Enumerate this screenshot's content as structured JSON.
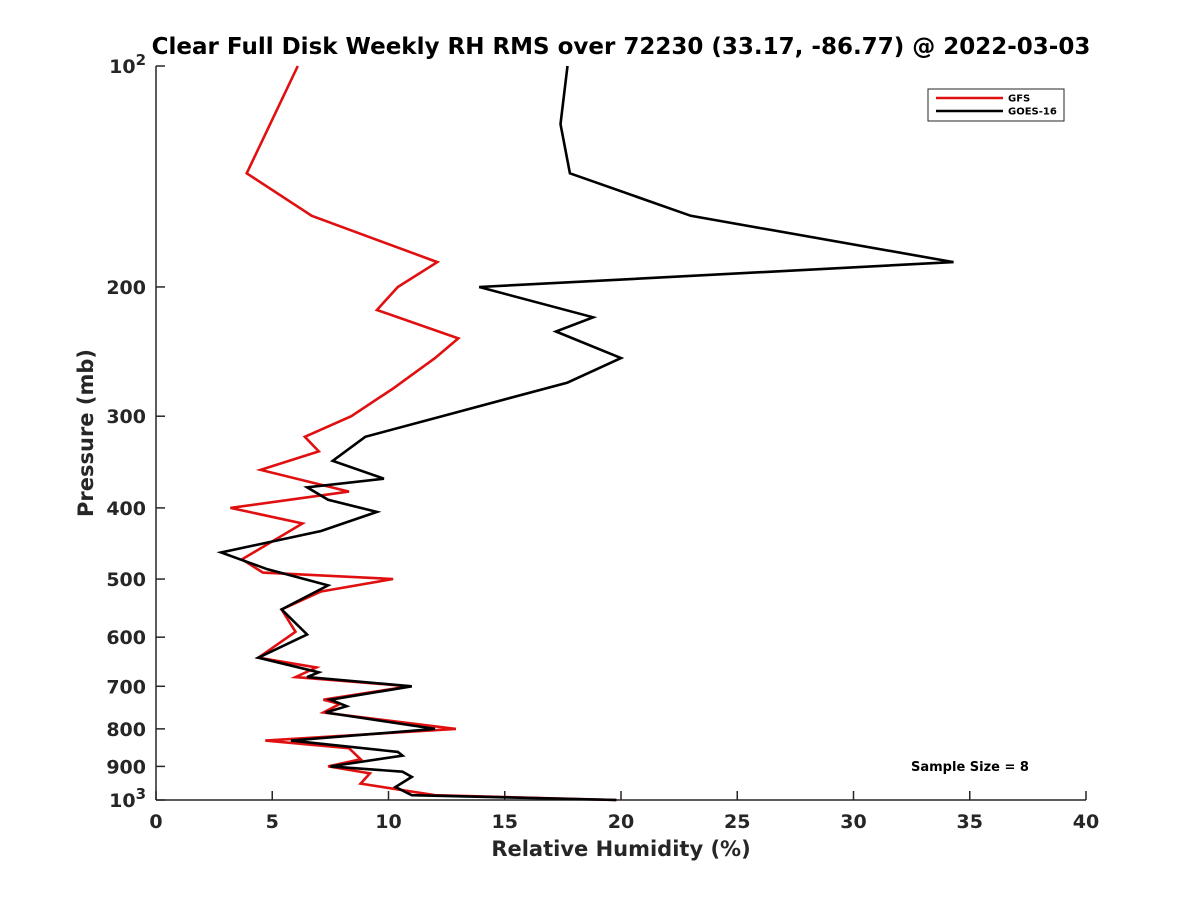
{
  "chart_data": {
    "type": "line",
    "title": "Clear Full Disk Weekly RH RMS over 72230 (33.17, -86.77) @ 2022-03-03",
    "xlabel": "Relative Humidity (%)",
    "ylabel": "Pressure (mb)",
    "xlim": [
      0,
      40
    ],
    "ylim": [
      100,
      1000
    ],
    "yscale": "log",
    "y_reversed": true,
    "x_ticks": [
      0,
      5,
      10,
      15,
      20,
      25,
      30,
      35,
      40
    ],
    "y_ticks": [
      {
        "value": 100,
        "base": "10",
        "exp": "2"
      },
      {
        "value": 200,
        "label": "200"
      },
      {
        "value": 300,
        "label": "300"
      },
      {
        "value": 400,
        "label": "400"
      },
      {
        "value": 500,
        "label": "500"
      },
      {
        "value": 600,
        "label": "600"
      },
      {
        "value": 700,
        "label": "700"
      },
      {
        "value": 800,
        "label": "800"
      },
      {
        "value": 900,
        "label": "900"
      },
      {
        "value": 1000,
        "base": "10",
        "exp": "3"
      }
    ],
    "legend_position": "top-right",
    "annotation": "Sample Size = 8",
    "series": [
      {
        "name": "GFS",
        "color": "#e01010",
        "points": [
          [
            6.1,
            100
          ],
          [
            3.9,
            140
          ],
          [
            6.7,
            160
          ],
          [
            12.1,
            185
          ],
          [
            10.4,
            200
          ],
          [
            9.5,
            215
          ],
          [
            13.0,
            235
          ],
          [
            12.0,
            250
          ],
          [
            10.2,
            275
          ],
          [
            8.4,
            300
          ],
          [
            6.4,
            320
          ],
          [
            7.0,
            335
          ],
          [
            4.5,
            355
          ],
          [
            8.3,
            380
          ],
          [
            3.2,
            400
          ],
          [
            6.3,
            420
          ],
          [
            3.7,
            470
          ],
          [
            4.6,
            490
          ],
          [
            10.2,
            500
          ],
          [
            7.1,
            520
          ],
          [
            5.4,
            550
          ],
          [
            6.0,
            590
          ],
          [
            4.4,
            640
          ],
          [
            6.9,
            660
          ],
          [
            6.0,
            680
          ],
          [
            10.9,
            700
          ],
          [
            7.2,
            730
          ],
          [
            7.9,
            740
          ],
          [
            7.2,
            760
          ],
          [
            12.9,
            800
          ],
          [
            4.7,
            830
          ],
          [
            8.3,
            850
          ],
          [
            8.8,
            880
          ],
          [
            7.4,
            900
          ],
          [
            9.2,
            920
          ],
          [
            8.8,
            950
          ],
          [
            12.0,
            985
          ],
          [
            19.8,
            1000
          ]
        ]
      },
      {
        "name": "GOES-16",
        "color": "#000000",
        "points": [
          [
            17.7,
            100
          ],
          [
            17.4,
            120
          ],
          [
            17.8,
            140
          ],
          [
            23.0,
            160
          ],
          [
            34.3,
            185
          ],
          [
            13.9,
            200
          ],
          [
            18.8,
            220
          ],
          [
            17.2,
            230
          ],
          [
            20.0,
            250
          ],
          [
            17.7,
            270
          ],
          [
            12.3,
            300
          ],
          [
            9.0,
            320
          ],
          [
            7.6,
            345
          ],
          [
            9.8,
            365
          ],
          [
            6.5,
            375
          ],
          [
            7.4,
            390
          ],
          [
            9.5,
            405
          ],
          [
            7.1,
            430
          ],
          [
            2.8,
            460
          ],
          [
            4.8,
            485
          ],
          [
            7.4,
            510
          ],
          [
            5.4,
            550
          ],
          [
            6.5,
            595
          ],
          [
            4.4,
            640
          ],
          [
            7.0,
            670
          ],
          [
            6.5,
            680
          ],
          [
            11.0,
            700
          ],
          [
            7.5,
            730
          ],
          [
            8.2,
            745
          ],
          [
            7.3,
            760
          ],
          [
            12.0,
            800
          ],
          [
            5.8,
            830
          ],
          [
            10.4,
            860
          ],
          [
            10.6,
            870
          ],
          [
            7.5,
            900
          ],
          [
            10.6,
            915
          ],
          [
            11.0,
            930
          ],
          [
            10.3,
            960
          ],
          [
            11.0,
            985
          ],
          [
            19.8,
            1000
          ]
        ]
      }
    ]
  }
}
